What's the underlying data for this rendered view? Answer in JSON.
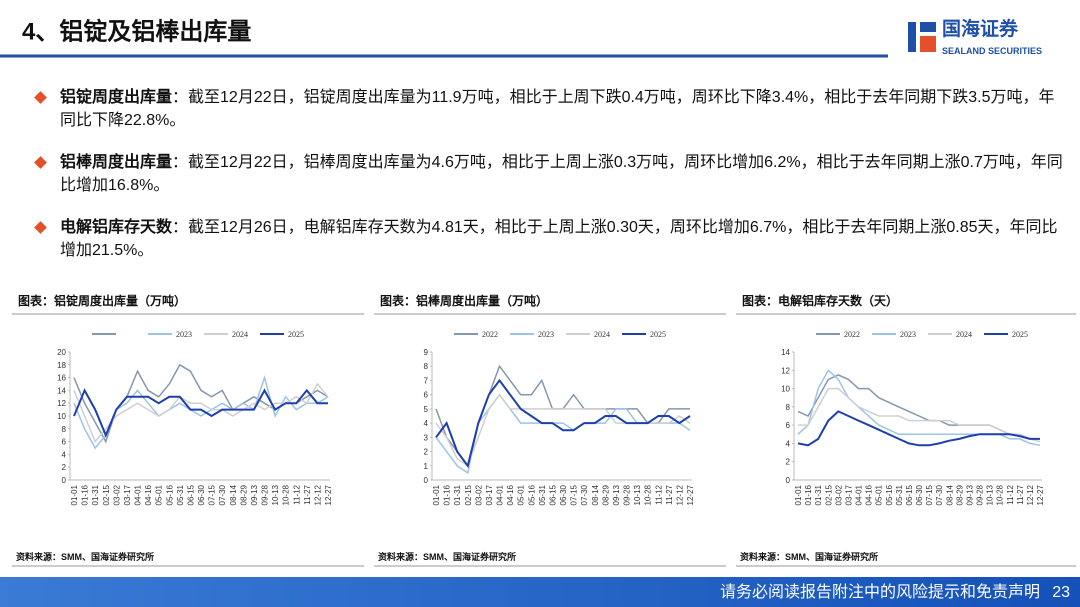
{
  "header": {
    "title": "4、铝锭及铝棒出库量",
    "logo_name": "国海证券",
    "logo_sub": "SEALAND SECURITIES"
  },
  "bullets": [
    {
      "label": "铝锭周度出库量",
      "text": "：截至12月22日，铝锭周度出库量为11.9万吨，相比于上周下跌0.4万吨，周环比下降3.4%，相比于去年同期下跌3.5万吨，年同比下降22.8%。"
    },
    {
      "label": "铝棒周度出库量",
      "text": "：截至12月22日，铝棒周度出库量为4.6万吨，相比于上周上涨0.3万吨，周环比增加6.2%，相比于去年同期上涨0.7万吨，年同比增加16.8%。"
    },
    {
      "label": "电解铝库存天数",
      "text": "：截至12月26日，电解铝库存天数为4.81天，相比于上周上涨0.30天，周环比增加6.7%，相比于去年同期上涨0.85天，年同比增加21.5%。"
    }
  ],
  "chart_data": [
    {
      "type": "line",
      "title": "图表：铝锭周度出库量（万吨）",
      "source": "资料来源：SMM、国海证券研究所",
      "grid": false,
      "categories": [
        "01-01",
        "01-16",
        "01-31",
        "02-15",
        "03-02",
        "03-17",
        "04-01",
        "04-16",
        "05-01",
        "05-16",
        "05-31",
        "06-15",
        "06-30",
        "07-15",
        "07-30",
        "08-14",
        "08-29",
        "09-13",
        "09-28",
        "10-13",
        "10-28",
        "11-12",
        "11-27",
        "12-12",
        "12-27"
      ],
      "ylim": [
        0,
        20
      ],
      "yticks": [
        0,
        2,
        4,
        6,
        8,
        10,
        12,
        14,
        16,
        18,
        20
      ],
      "series": [
        {
          "name": null,
          "color": "#8497b0",
          "values": [
            16,
            12,
            9,
            6,
            11,
            13,
            17,
            14,
            13,
            15,
            18,
            17,
            14,
            13,
            14,
            11,
            12,
            13,
            12,
            11,
            12,
            12,
            13,
            14,
            13
          ]
        },
        {
          "name": "2023",
          "color": "#9dc3e6",
          "values": [
            12,
            8,
            5,
            7,
            11,
            12,
            14,
            12,
            10,
            11,
            12,
            11,
            10,
            11,
            12,
            11,
            12,
            11,
            16,
            10,
            13,
            11,
            12,
            12,
            13
          ]
        },
        {
          "name": "2024",
          "color": "#cfcfcf",
          "values": [
            14,
            10,
            6,
            8,
            10,
            11,
            12,
            11,
            10,
            11,
            13,
            12,
            12,
            11,
            11,
            10,
            11,
            12,
            11,
            12,
            12,
            13,
            12,
            15,
            13
          ]
        },
        {
          "name": "2025",
          "color": "#1f3fae",
          "values": [
            10,
            14,
            11,
            7,
            11,
            13,
            13,
            13,
            12,
            13,
            13,
            11,
            11,
            10,
            11,
            11,
            11,
            11,
            14,
            11,
            12,
            12,
            14,
            12,
            12
          ]
        }
      ]
    },
    {
      "type": "line",
      "title": "图表：铝棒周度出库量（万吨）",
      "source": "资料来源：SMM、国海证券研究所",
      "grid": false,
      "categories": [
        "01-01",
        "01-16",
        "01-31",
        "02-15",
        "03-02",
        "03-17",
        "04-01",
        "04-16",
        "05-01",
        "05-16",
        "05-31",
        "06-15",
        "06-30",
        "07-15",
        "07-30",
        "08-14",
        "08-29",
        "09-13",
        "09-28",
        "10-13",
        "10-28",
        "11-12",
        "11-27",
        "12-12",
        "12-27"
      ],
      "ylim": [
        0,
        9
      ],
      "yticks": [
        0,
        1,
        2,
        3,
        4,
        5,
        6,
        7,
        8,
        9
      ],
      "series": [
        {
          "name": "2022",
          "color": "#8497b0",
          "values": [
            5,
            3,
            2,
            1,
            4,
            6,
            8,
            7,
            6,
            6,
            7,
            5,
            5,
            6,
            5,
            5,
            5,
            5,
            5,
            5,
            4,
            4,
            5,
            5,
            5
          ]
        },
        {
          "name": "2023",
          "color": "#9dc3e6",
          "values": [
            3,
            2,
            1,
            0.5,
            4,
            5,
            6,
            5,
            4,
            4,
            4,
            4,
            4,
            3.5,
            4,
            4,
            4,
            5,
            5,
            4,
            4,
            4,
            4,
            4,
            3.5
          ]
        },
        {
          "name": "2024",
          "color": "#cfcfcf",
          "values": [
            4,
            3,
            1.5,
            1,
            3,
            5,
            6,
            5,
            5,
            5,
            5,
            5,
            5,
            5,
            5,
            5,
            5,
            4,
            4,
            4,
            4,
            4,
            4,
            4.5,
            4
          ]
        },
        {
          "name": "2025",
          "color": "#1f3fae",
          "values": [
            3,
            4,
            2,
            1,
            4,
            6,
            7,
            6,
            5,
            4.5,
            4,
            4,
            3.5,
            3.5,
            4,
            4,
            4.5,
            4.5,
            4,
            4,
            4,
            4.5,
            4.5,
            4,
            4.5
          ]
        }
      ]
    },
    {
      "type": "line",
      "title": "图表：电解铝库存天数（天）",
      "source": "资料来源：SMM、国海证券研究所",
      "grid": false,
      "categories": [
        "01-01",
        "01-16",
        "01-31",
        "02-15",
        "03-02",
        "03-17",
        "04-01",
        "04-16",
        "05-01",
        "05-16",
        "05-31",
        "06-15",
        "06-30",
        "07-15",
        "07-30",
        "08-14",
        "08-29",
        "09-13",
        "09-28",
        "10-13",
        "10-28",
        "11-12",
        "11-27",
        "12-12",
        "12-27"
      ],
      "ylim": [
        0,
        14
      ],
      "yticks": [
        0,
        2,
        4,
        6,
        8,
        10,
        12,
        14
      ],
      "series": [
        {
          "name": "2022",
          "color": "#8497b0",
          "values": [
            7.5,
            7,
            9,
            11,
            11.5,
            11,
            10,
            10,
            9,
            8.5,
            8,
            7.5,
            7,
            6.5,
            6.5,
            6,
            6,
            6,
            6,
            6,
            5.5,
            5,
            5,
            4.5,
            4.5
          ]
        },
        {
          "name": "2023",
          "color": "#9dc3e6",
          "values": [
            5,
            6,
            10,
            12,
            11,
            9,
            8,
            7,
            6,
            5.5,
            5,
            5,
            5,
            5,
            5,
            5,
            5,
            5,
            5,
            5,
            5,
            4.5,
            4.5,
            4,
            3.8
          ]
        },
        {
          "name": "2024",
          "color": "#cfcfcf",
          "values": [
            6,
            6,
            8,
            10,
            10,
            9,
            8,
            7.5,
            7,
            7,
            7,
            6.5,
            6.5,
            6.5,
            6.5,
            6.5,
            6,
            6,
            6,
            6,
            5.5,
            5,
            5,
            4.5,
            4.2
          ]
        },
        {
          "name": "2025",
          "color": "#1f3fae",
          "values": [
            4,
            3.8,
            4.5,
            6.5,
            7.5,
            7,
            6.5,
            6,
            5.5,
            5,
            4.5,
            4,
            3.8,
            3.8,
            4,
            4.3,
            4.5,
            4.8,
            5,
            5,
            5,
            5,
            4.8,
            4.5,
            4.5
          ]
        }
      ]
    }
  ],
  "footer": {
    "text": "请务必阅读报告附注中的风险提示和免责声明",
    "page": "23"
  }
}
